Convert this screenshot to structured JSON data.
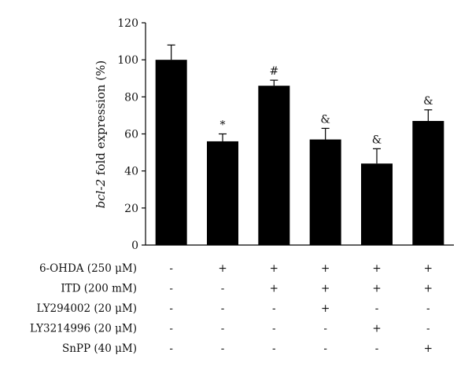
{
  "chart_data": {
    "type": "bar",
    "ylabel_italic": "bcl-2",
    "ylabel_rest": " fold expression (%)",
    "ylim": [
      0,
      120
    ],
    "yticks": [
      0,
      20,
      40,
      60,
      80,
      100,
      120
    ],
    "values": [
      100,
      56,
      86,
      57,
      44,
      67
    ],
    "errors": [
      8,
      4,
      3,
      6,
      8,
      6
    ],
    "annotations": [
      "",
      "*",
      "#",
      "&",
      "&",
      "&"
    ],
    "bar_color": "#000000",
    "grid": false,
    "treatments": [
      {
        "label": "6-OHDA (250 μM)",
        "signs": [
          "-",
          "+",
          "+",
          "+",
          "+",
          "+"
        ]
      },
      {
        "label": "ITD (200 mM)",
        "signs": [
          "-",
          "-",
          "+",
          "+",
          "+",
          "+"
        ]
      },
      {
        "label": "LY294002 (20 μM)",
        "signs": [
          "-",
          "-",
          "-",
          "+",
          "-",
          "-"
        ]
      },
      {
        "label": "LY3214996 (20 μM)",
        "signs": [
          "-",
          "-",
          "-",
          "-",
          "+",
          "-"
        ]
      },
      {
        "label": "SnPP (40 μM)",
        "signs": [
          "-",
          "-",
          "-",
          "-",
          "-",
          "+"
        ]
      }
    ]
  }
}
